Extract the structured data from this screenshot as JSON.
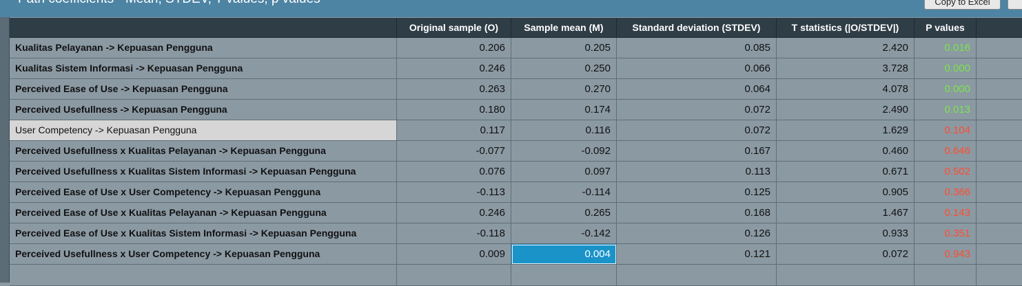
{
  "header": {
    "title": "Path coefficients - Mean, STDEV, T values, p values",
    "button": "Copy to Excel"
  },
  "table": {
    "columns": [
      "Original sample (O)",
      "Sample mean (M)",
      "Standard deviation (STDEV)",
      "T statistics (|O/STDEV|)",
      "P values"
    ],
    "significant_color": "#7be54a",
    "nonsignificant_color": "#ff4d2e",
    "rows": [
      {
        "label": "Kualitas Pelayanan -> Kepuasan Pengguna",
        "values": [
          "0.206",
          "0.205",
          "0.085",
          "2.420",
          "0.016"
        ],
        "significant": true
      },
      {
        "label": "Kualitas Sistem Informasi -> Kepuasan Pengguna",
        "values": [
          "0.246",
          "0.250",
          "0.066",
          "3.728",
          "0.000"
        ],
        "significant": true
      },
      {
        "label": "Perceived Ease of Use -> Kepuasan Pengguna",
        "values": [
          "0.263",
          "0.270",
          "0.064",
          "4.078",
          "0.000"
        ],
        "significant": true
      },
      {
        "label": "Perceived Usefullness -> Kepuasan Pengguna",
        "values": [
          "0.180",
          "0.174",
          "0.072",
          "2.490",
          "0.013"
        ],
        "significant": true
      },
      {
        "label": "User Competency -> Kepuasan Pengguna",
        "values": [
          "0.117",
          "0.116",
          "0.072",
          "1.629",
          "0.104"
        ],
        "significant": false
      },
      {
        "label": "Perceived Usefullness x Kualitas Pelayanan -> Kepuasan Pengguna",
        "values": [
          "-0.077",
          "-0.092",
          "0.167",
          "0.460",
          "0.646"
        ],
        "significant": false
      },
      {
        "label": "Perceived Usefullness x Kualitas Sistem Informasi -> Kepuasan Pengguna",
        "values": [
          "0.076",
          "0.097",
          "0.113",
          "0.671",
          "0.502"
        ],
        "significant": false
      },
      {
        "label": "Perceived Ease of Use x User Competency -> Kepuasan Pengguna",
        "values": [
          "-0.113",
          "-0.114",
          "0.125",
          "0.905",
          "0.366"
        ],
        "significant": false
      },
      {
        "label": "Perceived Ease of Use x Kualitas Pelayanan -> Kepuasan Pengguna",
        "values": [
          "0.246",
          "0.265",
          "0.168",
          "1.467",
          "0.143"
        ],
        "significant": false
      },
      {
        "label": "Perceived Ease of Use x Kualitas Sistem Informasi -> Kepuasan Pengguna",
        "values": [
          "-0.118",
          "-0.142",
          "0.126",
          "0.933",
          "0.351"
        ],
        "significant": false
      },
      {
        "label": "Perceived Usefullness x User Competency -> Kepuasan Pengguna",
        "values": [
          "0.009",
          "0.004",
          "0.121",
          "0.072",
          "0.943"
        ],
        "significant": false
      }
    ]
  }
}
